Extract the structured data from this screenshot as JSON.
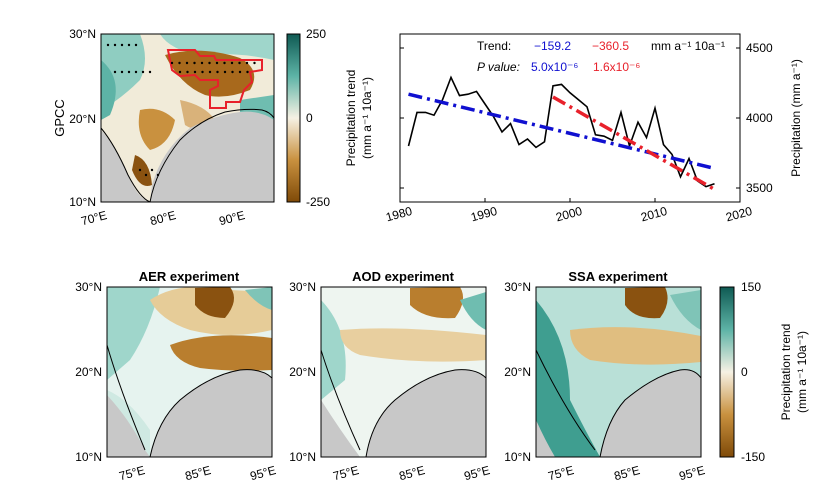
{
  "colors": {
    "brown_dark": "#7f4a08",
    "brown_mid": "#c9913f",
    "neutral": "#f6f1e4",
    "teal_mid": "#5db3a6",
    "teal_dark": "#0f5a53",
    "land_gray": "#c8c8c8",
    "region_red": "#e8212b",
    "trend_blue": "#1010d0",
    "trend_red": "#e8212b"
  },
  "chart_data": [
    {
      "id": "gpcc-map",
      "type": "heatmap",
      "ylabel": "GPCC",
      "x_ticks": [
        "70°E",
        "80°E",
        "90°E"
      ],
      "y_ticks": [
        "30°N",
        "20°N",
        "10°N"
      ],
      "xlim": [
        70,
        95
      ],
      "ylim": [
        10,
        30
      ],
      "colorbar": {
        "label_line1": "Precipitation trend",
        "label_line2": "(mm a⁻¹ 10a⁻¹)",
        "ticks": [
          "250",
          "0",
          "-250"
        ],
        "range": [
          -250,
          250
        ]
      }
    },
    {
      "id": "timeseries",
      "type": "line",
      "x_ticks": [
        "1980",
        "1990",
        "2000",
        "2010",
        "2020"
      ],
      "xlim": [
        1980,
        2020
      ],
      "ylim": [
        3400,
        4600
      ],
      "y_ticks": [
        "3500",
        "4000",
        "4500"
      ],
      "ylabel": "Precipitation (mm a⁻¹)",
      "x": [
        1981,
        1982,
        1983,
        1984,
        1985,
        1986,
        1987,
        1988,
        1989,
        1990,
        1991,
        1992,
        1993,
        1994,
        1995,
        1996,
        1997,
        1998,
        1999,
        2000,
        2001,
        2002,
        2003,
        2004,
        2005,
        2006,
        2007,
        2008,
        2009,
        2010,
        2011,
        2012,
        2013,
        2014,
        2015,
        2016,
        2017
      ],
      "values": [
        3800,
        4040,
        4040,
        4020,
        4130,
        4290,
        4160,
        4170,
        4190,
        4100,
        4010,
        3900,
        3960,
        3810,
        3850,
        3790,
        3830,
        4230,
        4240,
        4180,
        4130,
        4080,
        3880,
        3870,
        3840,
        4040,
        3800,
        3970,
        3860,
        4070,
        3810,
        3740,
        3580,
        3710,
        3550,
        3510,
        3530
      ],
      "legend_trend_label": "Trend:",
      "legend_p_label": "P value:",
      "legend_unit": "mm a⁻¹ 10a⁻¹",
      "series": [
        {
          "name": "Precipitation",
          "color": "#000000"
        },
        {
          "name": "Trend 1981–2017",
          "trend_text": "−159.2",
          "p_text": "5.0x10⁻⁶",
          "x": [
            1981,
            2017
          ],
          "values": [
            4170,
            3640
          ]
        },
        {
          "name": "Trend 1998–2017",
          "trend_text": "−360.5",
          "p_text": "1.6x10⁻⁶",
          "x": [
            1998,
            2017
          ],
          "values": [
            4150,
            3490
          ]
        }
      ]
    },
    {
      "id": "aer-map",
      "type": "heatmap",
      "title": "AER experiment",
      "x_ticks": [
        "75°E",
        "85°E",
        "95°E"
      ],
      "y_ticks": [
        "30°N",
        "20°N",
        "10°N"
      ],
      "xlim": [
        70,
        95
      ],
      "ylim": [
        10,
        30
      ]
    },
    {
      "id": "aod-map",
      "type": "heatmap",
      "title": "AOD experiment",
      "x_ticks": [
        "75°E",
        "85°E",
        "95°E"
      ],
      "y_ticks": [
        "30°N",
        "20°N",
        "10°N"
      ],
      "xlim": [
        70,
        95
      ],
      "ylim": [
        10,
        30
      ]
    },
    {
      "id": "ssa-map",
      "type": "heatmap",
      "title": "SSA experiment",
      "x_ticks": [
        "75°E",
        "85°E",
        "95°E"
      ],
      "y_ticks": [
        "30°N",
        "20°N",
        "10°N"
      ],
      "xlim": [
        70,
        95
      ],
      "ylim": [
        10,
        30
      ],
      "colorbar": {
        "label_line1": "Precipitation trend",
        "label_line2": "(mm a⁻¹ 10a⁻¹)",
        "ticks": [
          "150",
          "0",
          "-150"
        ],
        "range": [
          -150,
          150
        ]
      }
    }
  ]
}
